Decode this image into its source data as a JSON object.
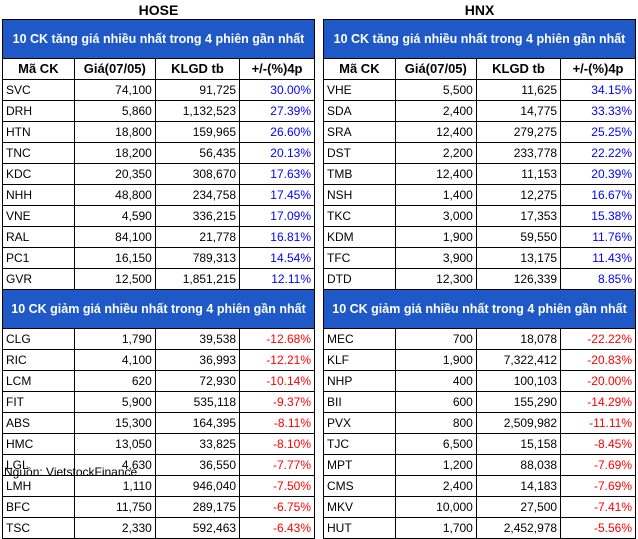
{
  "hose": {
    "exchange": "HOSE",
    "gainers_title": "10 CK tăng giá nhiều nhất trong 4 phiên gần nhất",
    "losers_title": "10 CK giảm giá nhiều nhất trong 4 phiên gần nhất",
    "headers": [
      "Mã CK",
      "Giá(07/05)",
      "KLGD tb",
      "+/-(%)4p"
    ],
    "gainers": [
      [
        "SVC",
        "74,100",
        "91,725",
        "30.00%"
      ],
      [
        "DRH",
        "5,860",
        "1,132,523",
        "27.39%"
      ],
      [
        "HTN",
        "18,800",
        "159,965",
        "26.60%"
      ],
      [
        "TNC",
        "18,200",
        "56,435",
        "20.13%"
      ],
      [
        "KDC",
        "20,350",
        "308,670",
        "17.63%"
      ],
      [
        "NHH",
        "48,800",
        "234,758",
        "17.45%"
      ],
      [
        "VNE",
        "4,590",
        "336,215",
        "17.09%"
      ],
      [
        "RAL",
        "84,100",
        "21,778",
        "16.81%"
      ],
      [
        "PC1",
        "16,150",
        "789,313",
        "14.54%"
      ],
      [
        "GVR",
        "12,500",
        "1,851,215",
        "12.11%"
      ]
    ],
    "losers": [
      [
        "CLG",
        "1,790",
        "39,538",
        "-12.68%"
      ],
      [
        "RIC",
        "4,100",
        "36,993",
        "-12.21%"
      ],
      [
        "LCM",
        "620",
        "72,930",
        "-10.14%"
      ],
      [
        "FIT",
        "5,900",
        "535,118",
        "-9.37%"
      ],
      [
        "ABS",
        "15,300",
        "164,395",
        "-8.11%"
      ],
      [
        "HMC",
        "13,050",
        "33,825",
        "-8.10%"
      ],
      [
        "LGL",
        "4,630",
        "36,550",
        "-7.77%"
      ],
      [
        "LMH",
        "1,110",
        "946,040",
        "-7.50%"
      ],
      [
        "BFC",
        "11,750",
        "289,175",
        "-6.75%"
      ],
      [
        "TSC",
        "2,330",
        "592,463",
        "-6.43%"
      ]
    ]
  },
  "hnx": {
    "exchange": "HNX",
    "gainers_title": "10 CK tăng giá nhiều nhất trong 4 phiên gần nhất",
    "losers_title": "10 CK giảm giá nhiều nhất trong 4 phiên gần nhất",
    "headers": [
      "Mã CK",
      "Giá(07/05)",
      "KLGD tb",
      "+/-(%)4p"
    ],
    "gainers": [
      [
        "VHE",
        "5,500",
        "11,625",
        "34.15%"
      ],
      [
        "SDA",
        "2,400",
        "14,775",
        "33.33%"
      ],
      [
        "SRA",
        "12,400",
        "279,275",
        "25.25%"
      ],
      [
        "DST",
        "2,200",
        "233,778",
        "22.22%"
      ],
      [
        "TMB",
        "12,400",
        "11,153",
        "20.39%"
      ],
      [
        "NSH",
        "1,400",
        "12,275",
        "16.67%"
      ],
      [
        "TKC",
        "3,000",
        "17,353",
        "15.38%"
      ],
      [
        "KDM",
        "1,900",
        "59,550",
        "11.76%"
      ],
      [
        "TFC",
        "3,900",
        "13,175",
        "11.43%"
      ],
      [
        "DTD",
        "12,300",
        "126,339",
        "8.85%"
      ]
    ],
    "losers": [
      [
        "MEC",
        "700",
        "18,078",
        "-22.22%"
      ],
      [
        "KLF",
        "1,900",
        "7,322,412",
        "-20.83%"
      ],
      [
        "NHP",
        "400",
        "100,103",
        "-20.00%"
      ],
      [
        "BII",
        "600",
        "155,290",
        "-14.29%"
      ],
      [
        "PVX",
        "800",
        "2,509,982",
        "-11.11%"
      ],
      [
        "TJC",
        "6,500",
        "15,158",
        "-8.45%"
      ],
      [
        "MPT",
        "1,200",
        "88,038",
        "-7.69%"
      ],
      [
        "CMS",
        "2,400",
        "14,183",
        "-7.69%"
      ],
      [
        "MKV",
        "10,000",
        "27,500",
        "-7.41%"
      ],
      [
        "HUT",
        "1,700",
        "2,452,978",
        "-5.56%"
      ]
    ]
  },
  "source": "Nguồn: VietstockFinance"
}
